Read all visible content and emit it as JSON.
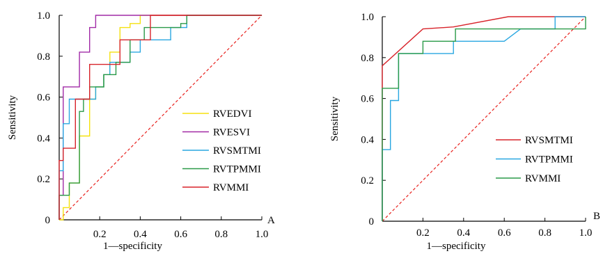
{
  "chart_data": [
    {
      "type": "line",
      "panel_label": "A",
      "xlabel": "1—specificity",
      "ylabel": "Sensitivity",
      "xlim": [
        0,
        1.0
      ],
      "ylim": [
        0,
        1.0
      ],
      "x_ticks": [
        "0.2",
        "0.4",
        "0.6",
        "0.8",
        "1.0"
      ],
      "y_ticks": [
        "0",
        "0.2",
        "0.4",
        "0.6",
        "0.8",
        "1.0"
      ],
      "legend_position": "bottom-right",
      "reference_line": {
        "style": "dashed",
        "color": "#e8211d",
        "x": [
          0,
          1
        ],
        "y": [
          0,
          1
        ]
      },
      "series": [
        {
          "name": "RVEDVI",
          "color": "#f5e10f",
          "x": [
            0,
            0.02,
            0.02,
            0.05,
            0.05,
            0.1,
            0.1,
            0.15,
            0.15,
            0.18,
            0.18,
            0.22,
            0.22,
            0.25,
            0.25,
            0.3,
            0.3,
            0.35,
            0.35,
            0.4,
            0.4,
            1.0
          ],
          "y": [
            0,
            0,
            0.06,
            0.06,
            0.18,
            0.18,
            0.41,
            0.41,
            0.59,
            0.59,
            0.65,
            0.65,
            0.71,
            0.71,
            0.82,
            0.82,
            0.94,
            0.94,
            0.96,
            0.96,
            1.0,
            1.0
          ]
        },
        {
          "name": "RVESVI",
          "color": "#a12aa6",
          "x": [
            0,
            0,
            0.02,
            0.02,
            0.1,
            0.1,
            0.15,
            0.15,
            0.18,
            0.18,
            1.0
          ],
          "y": [
            0,
            0.12,
            0.12,
            0.65,
            0.65,
            0.82,
            0.82,
            0.94,
            0.94,
            1.0,
            1.0
          ]
        },
        {
          "name": "RVSMTMI",
          "color": "#29a7e1",
          "x": [
            0,
            0,
            0.02,
            0.02,
            0.05,
            0.05,
            0.18,
            0.18,
            0.22,
            0.22,
            0.25,
            0.25,
            0.35,
            0.35,
            0.4,
            0.4,
            0.45,
            0.45,
            0.55,
            0.55,
            0.63,
            0.63,
            1.0
          ],
          "y": [
            0,
            0.24,
            0.24,
            0.47,
            0.47,
            0.59,
            0.59,
            0.65,
            0.65,
            0.71,
            0.71,
            0.77,
            0.77,
            0.82,
            0.82,
            0.88,
            0.88,
            0.88,
            0.88,
            0.94,
            0.94,
            1.0,
            1.0
          ]
        },
        {
          "name": "RVTPMMI",
          "color": "#2a9a48",
          "x": [
            0,
            0,
            0.05,
            0.05,
            0.1,
            0.1,
            0.12,
            0.12,
            0.15,
            0.15,
            0.22,
            0.22,
            0.28,
            0.28,
            0.35,
            0.35,
            0.42,
            0.42,
            0.6,
            0.6,
            0.63,
            0.63,
            1.0
          ],
          "y": [
            0,
            0.12,
            0.12,
            0.18,
            0.18,
            0.53,
            0.53,
            0.59,
            0.59,
            0.65,
            0.65,
            0.71,
            0.71,
            0.77,
            0.77,
            0.88,
            0.88,
            0.94,
            0.94,
            0.96,
            0.96,
            1.0,
            1.0
          ]
        },
        {
          "name": "RVMMI",
          "color": "#d8232a",
          "x": [
            0,
            0,
            0.02,
            0.02,
            0.08,
            0.08,
            0.15,
            0.15,
            0.3,
            0.3,
            0.45,
            0.45,
            1.0
          ],
          "y": [
            0,
            0.29,
            0.29,
            0.35,
            0.35,
            0.59,
            0.59,
            0.76,
            0.76,
            0.88,
            0.88,
            1.0,
            1.0
          ]
        }
      ]
    },
    {
      "type": "line",
      "panel_label": "B",
      "xlabel": "1—specificity",
      "ylabel": "Sensitivity",
      "xlim": [
        0,
        1.0
      ],
      "ylim": [
        0,
        1.0
      ],
      "x_ticks": [
        "0.2",
        "0.4",
        "0.6",
        "0.8",
        "1.0"
      ],
      "y_ticks": [
        "0",
        "0.2",
        "0.4",
        "0.6",
        "0.8",
        "1.0"
      ],
      "legend_position": "bottom-right",
      "reference_line": {
        "style": "dashed",
        "color": "#e8211d",
        "x": [
          0,
          1
        ],
        "y": [
          0,
          1
        ]
      },
      "series": [
        {
          "name": "RVSMTMI",
          "color": "#d8232a",
          "x": [
            0,
            0,
            0.2,
            0.35,
            0.62,
            0.92,
            1.0
          ],
          "y": [
            0,
            0.76,
            0.94,
            0.95,
            1.0,
            1.0,
            1.0
          ]
        },
        {
          "name": "RVTPMMI",
          "color": "#29a7e1",
          "x": [
            0,
            0,
            0.04,
            0.04,
            0.08,
            0.08,
            0.35,
            0.35,
            0.6,
            0.68,
            0.85,
            0.85,
            1.0
          ],
          "y": [
            0,
            0.35,
            0.35,
            0.59,
            0.59,
            0.82,
            0.82,
            0.88,
            0.88,
            0.94,
            0.94,
            1.0,
            1.0
          ]
        },
        {
          "name": "RVMMI",
          "color": "#2a9a48",
          "x": [
            0,
            0,
            0.08,
            0.08,
            0.2,
            0.2,
            0.36,
            0.36,
            1.0,
            1.0
          ],
          "y": [
            0,
            0.65,
            0.65,
            0.82,
            0.82,
            0.88,
            0.88,
            0.94,
            0.94,
            1.0
          ]
        }
      ]
    }
  ]
}
